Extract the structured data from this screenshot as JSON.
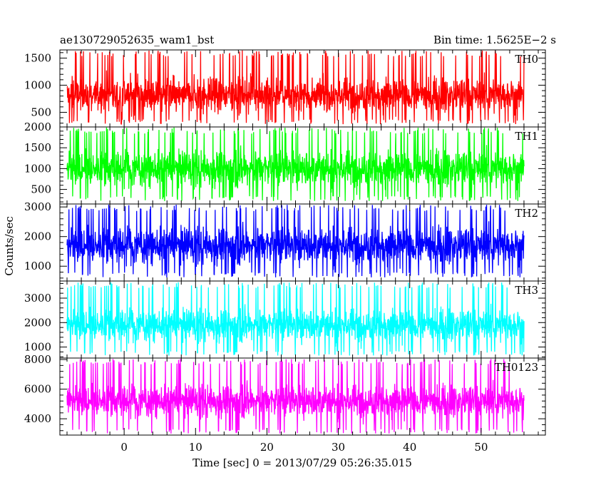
{
  "chart_data": {
    "type": "line",
    "title_left": "ae130729052635_wam1_bst",
    "title_right": "Bin time: 1.5625E−2 s",
    "xlabel": "Time [sec] 0 = 2013/07/29 05:26:35.015",
    "ylabel": "Counts/sec",
    "xlim": [
      -9,
      59
    ],
    "data_xrange": [
      -8,
      56
    ],
    "xticks": [
      0,
      10,
      20,
      30,
      40,
      50
    ],
    "grid": false,
    "panels": [
      {
        "name": "TH0",
        "color": "#ff0000",
        "ylim": [
          230,
          1650
        ],
        "yticks": [
          500,
          1000,
          1500
        ],
        "mean": 820,
        "spread": 220,
        "min": 280,
        "max": 1640
      },
      {
        "name": "TH1",
        "color": "#00ff00",
        "ylim": [
          150,
          2000
        ],
        "yticks": [
          500,
          1000,
          1500,
          2000
        ],
        "mean": 1000,
        "spread": 300,
        "min": 220,
        "max": 1990
      },
      {
        "name": "TH2",
        "color": "#0000ff",
        "ylim": [
          500,
          3100
        ],
        "yticks": [
          1000,
          2000,
          3000
        ],
        "mean": 1700,
        "spread": 430,
        "min": 620,
        "max": 3080
      },
      {
        "name": "TH3",
        "color": "#00ffff",
        "ylim": [
          550,
          3700
        ],
        "yticks": [
          1000,
          2000,
          3000
        ],
        "mean": 1900,
        "spread": 460,
        "min": 650,
        "max": 3650
      },
      {
        "name": "TH0123",
        "color": "#ff00ff",
        "ylim": [
          2900,
          8100
        ],
        "yticks": [
          4000,
          6000,
          8000
        ],
        "mean": 5200,
        "spread": 750,
        "min": 3000,
        "max": 8050
      }
    ]
  }
}
